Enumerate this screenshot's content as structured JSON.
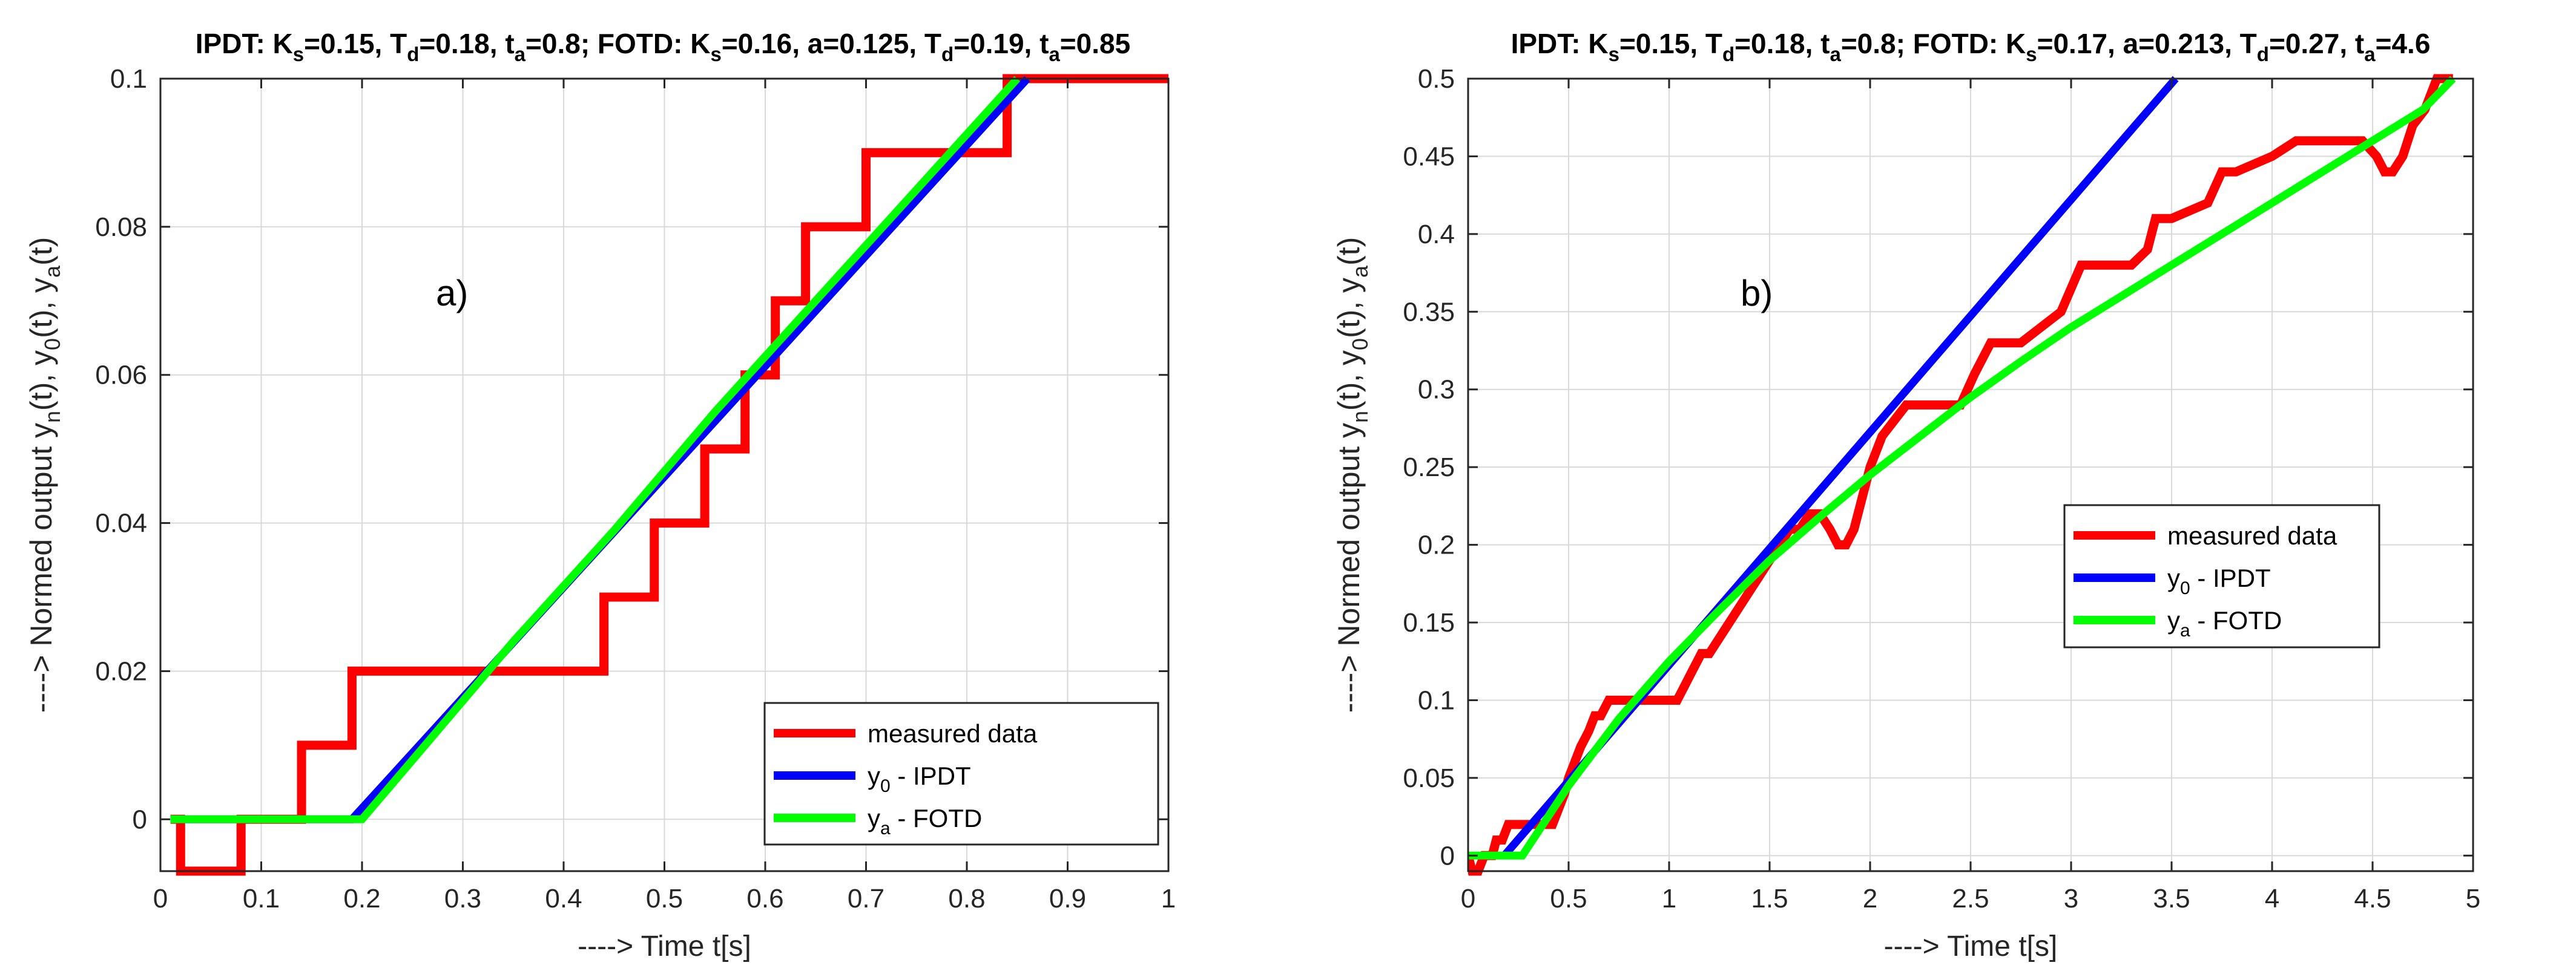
{
  "chart_data": [
    {
      "type": "line",
      "title": {
        "parts": [
          {
            "t": "IPDT: K"
          },
          {
            "t": "s",
            "sub": true
          },
          {
            "t": "=0.15, T"
          },
          {
            "t": "d",
            "sub": true
          },
          {
            "t": "=0.18, t"
          },
          {
            "t": "a",
            "sub": true
          },
          {
            "t": "=0.8;  FOTD: K"
          },
          {
            "t": "s",
            "sub": true
          },
          {
            "t": "=0.16, a=0.125, T"
          },
          {
            "t": "d",
            "sub": true
          },
          {
            "t": "=0.19, t"
          },
          {
            "t": "a",
            "sub": true
          },
          {
            "t": "=0.85"
          }
        ]
      },
      "panel_label": "a)",
      "xlabel": "----> Time t[s]",
      "ylabel": {
        "parts": [
          {
            "t": "----> Normed output y"
          },
          {
            "t": "n",
            "sub": true
          },
          {
            "t": "(t), y"
          },
          {
            "t": "0",
            "sub": true
          },
          {
            "t": "(t), y"
          },
          {
            "t": "a",
            "sub": true
          },
          {
            "t": "(t)"
          }
        ]
      },
      "xlim": [
        0,
        1
      ],
      "ylim": [
        -0.007,
        0.1
      ],
      "xticks": [
        0,
        0.1,
        0.2,
        0.3,
        0.4,
        0.5,
        0.6,
        0.7,
        0.8,
        0.9,
        1
      ],
      "xtick_labels": [
        "0",
        "0.1",
        "0.2",
        "0.3",
        "0.4",
        "0.5",
        "0.6",
        "0.7",
        "0.8",
        "0.9",
        "1"
      ],
      "yticks": [
        0,
        0.02,
        0.04,
        0.06,
        0.08,
        0.1
      ],
      "ytick_labels": [
        "0",
        "0.02",
        "0.04",
        "0.06",
        "0.08",
        "0.1"
      ],
      "grid": true,
      "legend_position": "bottom-right",
      "series": [
        {
          "name": "measured data",
          "color": "#ff0000",
          "step": true,
          "x": [
            0.01,
            0.02,
            0.07,
            0.08,
            0.13,
            0.14,
            0.18,
            0.19,
            0.43,
            0.44,
            0.48,
            0.49,
            0.53,
            0.54,
            0.57,
            0.58,
            0.6,
            0.61,
            0.63,
            0.64,
            0.65,
            0.66,
            0.69,
            0.7,
            0.77,
            0.78,
            0.83,
            0.84,
            1.0
          ],
          "y": [
            0,
            -0.007,
            -0.007,
            0,
            0,
            0.01,
            0.01,
            0.02,
            0.02,
            0.03,
            0.03,
            0.04,
            0.04,
            0.05,
            0.05,
            0.06,
            0.06,
            0.07,
            0.07,
            0.08,
            0.08,
            0.08,
            0.08,
            0.09,
            0.09,
            0.09,
            0.09,
            0.1,
            0.1
          ]
        },
        {
          "name": "y0 - IPDT",
          "color": "#0000ff",
          "x": [
            0.01,
            0.19,
            0.86
          ],
          "y": [
            0,
            0,
            0.1
          ]
        },
        {
          "name": "ya - FOTD",
          "color": "#00ff00",
          "x": [
            0.01,
            0.2,
            0.25,
            0.35,
            0.45,
            0.55,
            0.65,
            0.75,
            0.85
          ],
          "y": [
            0,
            0,
            0.008,
            0.024,
            0.039,
            0.055,
            0.07,
            0.085,
            0.1
          ]
        }
      ],
      "legend": [
        {
          "parts": [
            {
              "t": "measured data"
            }
          ]
        },
        {
          "parts": [
            {
              "t": "y"
            },
            {
              "t": "0",
              "sub": true
            },
            {
              "t": " - IPDT"
            }
          ]
        },
        {
          "parts": [
            {
              "t": "y"
            },
            {
              "t": "a",
              "sub": true
            },
            {
              "t": " - FOTD"
            }
          ]
        }
      ]
    },
    {
      "type": "line",
      "title": {
        "parts": [
          {
            "t": "IPDT: K"
          },
          {
            "t": "s",
            "sub": true
          },
          {
            "t": "=0.15, T"
          },
          {
            "t": "d",
            "sub": true
          },
          {
            "t": "=0.18, t"
          },
          {
            "t": "a",
            "sub": true
          },
          {
            "t": "=0.8;  FOTD: K"
          },
          {
            "t": "s",
            "sub": true
          },
          {
            "t": "=0.17, a=0.213, T"
          },
          {
            "t": "d",
            "sub": true
          },
          {
            "t": "=0.27, t"
          },
          {
            "t": "a",
            "sub": true
          },
          {
            "t": "=4.6"
          }
        ]
      },
      "panel_label": "b)",
      "xlabel": "----> Time t[s]",
      "ylabel": {
        "parts": [
          {
            "t": "----> Normed output y"
          },
          {
            "t": "n",
            "sub": true
          },
          {
            "t": "(t), y"
          },
          {
            "t": "0",
            "sub": true
          },
          {
            "t": "(t), y"
          },
          {
            "t": "a",
            "sub": true
          },
          {
            "t": "(t)"
          }
        ]
      },
      "xlim": [
        0,
        5
      ],
      "ylim": [
        -0.01,
        0.5
      ],
      "xticks": [
        0,
        0.5,
        1,
        1.5,
        2,
        2.5,
        3,
        3.5,
        4,
        4.5,
        5
      ],
      "xtick_labels": [
        "0",
        "0.5",
        "1",
        "1.5",
        "2",
        "2.5",
        "3",
        "3.5",
        "4",
        "4.5",
        "5"
      ],
      "yticks": [
        0,
        0.05,
        0.1,
        0.15,
        0.2,
        0.25,
        0.3,
        0.35,
        0.4,
        0.45,
        0.5
      ],
      "ytick_labels": [
        "0",
        "0.05",
        "0.1",
        "0.15",
        "0.2",
        "0.25",
        "0.3",
        "0.35",
        "0.4",
        "0.45",
        "0.5"
      ],
      "grid": true,
      "legend_position": "center-right",
      "series": [
        {
          "name": "measured data",
          "color": "#ff0000",
          "x": [
            0,
            0.02,
            0.05,
            0.08,
            0.12,
            0.14,
            0.17,
            0.2,
            0.22,
            0.3,
            0.33,
            0.36,
            0.42,
            0.45,
            0.48,
            0.5,
            0.53,
            0.56,
            0.6,
            0.63,
            0.66,
            0.7,
            0.74,
            0.78,
            0.82,
            0.86,
            0.9,
            0.96,
            1.04,
            1.08,
            1.12,
            1.16,
            1.2,
            1.25,
            1.3,
            1.35,
            1.4,
            1.45,
            1.5,
            1.55,
            1.6,
            1.65,
            1.7,
            1.75,
            1.8,
            1.84,
            1.88,
            1.92,
            1.96,
            2.0,
            2.06,
            2.12,
            2.18,
            2.3,
            2.45,
            2.52,
            2.6,
            2.75,
            2.85,
            2.95,
            3.05,
            3.3,
            3.38,
            3.42,
            3.5,
            3.68,
            3.75,
            3.82,
            4.0,
            4.12,
            4.25,
            4.45,
            4.52,
            4.56,
            4.6,
            4.65,
            4.7,
            4.76,
            4.82,
            4.9
          ],
          "y": [
            0,
            -0.01,
            -0.01,
            0,
            0,
            0.01,
            0.01,
            0.02,
            0.02,
            0.02,
            0.02,
            0.02,
            0.02,
            0.03,
            0.04,
            0.05,
            0.06,
            0.07,
            0.08,
            0.09,
            0.09,
            0.1,
            0.1,
            0.1,
            0.1,
            0.1,
            0.1,
            0.1,
            0.1,
            0.11,
            0.12,
            0.13,
            0.13,
            0.14,
            0.15,
            0.16,
            0.17,
            0.18,
            0.19,
            0.2,
            0.21,
            0.21,
            0.22,
            0.22,
            0.21,
            0.2,
            0.2,
            0.21,
            0.23,
            0.25,
            0.27,
            0.28,
            0.29,
            0.29,
            0.29,
            0.31,
            0.33,
            0.33,
            0.34,
            0.35,
            0.38,
            0.38,
            0.39,
            0.41,
            0.41,
            0.42,
            0.44,
            0.44,
            0.45,
            0.46,
            0.46,
            0.46,
            0.45,
            0.44,
            0.44,
            0.45,
            0.47,
            0.48,
            0.5,
            0.5
          ]
        },
        {
          "name": "y0 - IPDT",
          "color": "#0000ff",
          "x": [
            0.18,
            3.52
          ],
          "y": [
            0,
            0.5
          ]
        },
        {
          "name": "ya - FOTD",
          "color": "#00ff00",
          "x": [
            0,
            0.27,
            0.5,
            0.75,
            1.0,
            1.25,
            1.5,
            1.75,
            2.0,
            2.25,
            2.5,
            2.75,
            3.0,
            3.25,
            3.5,
            3.75,
            4.0,
            4.25,
            4.5,
            4.75,
            4.9
          ],
          "y": [
            0,
            0,
            0.045,
            0.088,
            0.125,
            0.158,
            0.19,
            0.218,
            0.245,
            0.27,
            0.295,
            0.318,
            0.34,
            0.36,
            0.38,
            0.4,
            0.42,
            0.44,
            0.46,
            0.48,
            0.5
          ]
        }
      ],
      "legend": [
        {
          "parts": [
            {
              "t": "measured data"
            }
          ]
        },
        {
          "parts": [
            {
              "t": "y"
            },
            {
              "t": "0",
              "sub": true
            },
            {
              "t": " - IPDT"
            }
          ]
        },
        {
          "parts": [
            {
              "t": "y"
            },
            {
              "t": "a",
              "sub": true
            },
            {
              "t": " - FOTD"
            }
          ]
        }
      ]
    }
  ]
}
